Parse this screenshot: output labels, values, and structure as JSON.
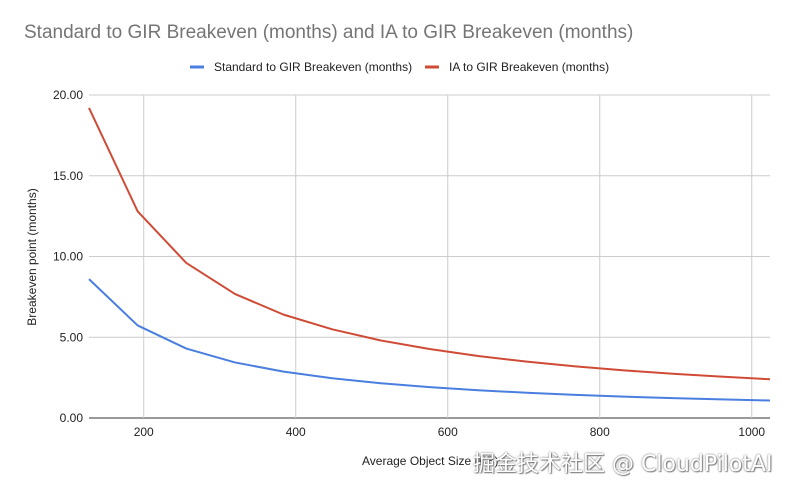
{
  "chart_data": {
    "type": "line",
    "title": "Standard to GIR Breakeven (months) and IA to GIR Breakeven (months)",
    "xlabel": "Average Object Size (KB)",
    "ylabel": "Breakeven point (months)",
    "xlim": [
      128,
      1024
    ],
    "ylim": [
      0,
      20
    ],
    "x_ticks": [
      200,
      400,
      600,
      800,
      1000
    ],
    "y_ticks": [
      "0.00",
      "5.00",
      "10.00",
      "15.00",
      "20.00"
    ],
    "grid": true,
    "legend_position": "top",
    "x": [
      128,
      192,
      256,
      320,
      384,
      448,
      512,
      576,
      640,
      704,
      768,
      832,
      896,
      960,
      1024
    ],
    "series": [
      {
        "name": "Standard to GIR Breakeven (months)",
        "color": "#4a7fe0",
        "values": [
          8.6,
          5.73,
          4.3,
          3.44,
          2.87,
          2.46,
          2.15,
          1.91,
          1.72,
          1.56,
          1.43,
          1.32,
          1.23,
          1.15,
          1.08
        ]
      },
      {
        "name": "IA to GIR Breakeven (months)",
        "color": "#d04b36",
        "values": [
          19.2,
          12.8,
          9.6,
          7.68,
          6.4,
          5.49,
          4.8,
          4.27,
          3.84,
          3.49,
          3.2,
          2.95,
          2.74,
          2.56,
          2.4
        ]
      }
    ]
  },
  "watermark": "掘金技术社区 @ CloudPilotAI"
}
